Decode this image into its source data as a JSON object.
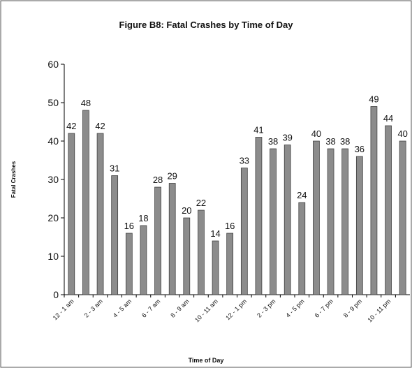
{
  "chart_data": {
    "type": "bar",
    "title": "Figure B8:  Fatal Crashes by Time of Day",
    "x_label": "Time of Day",
    "y_label": "Fatal Crashes",
    "categories": [
      "12 - 1 am",
      null,
      "2 - 3 am",
      null,
      "4 - 5 am",
      null,
      "6 - 7 am",
      null,
      "8 - 9 am",
      null,
      "10 - 11 am",
      null,
      "12 - 1 pm",
      null,
      "2 - 3 pm",
      null,
      "4 - 5 pm",
      null,
      "6 - 7 pm",
      null,
      "8 - 9 pm",
      null,
      "10 - 11 pm",
      null
    ],
    "values": [
      42,
      48,
      42,
      31,
      16,
      18,
      28,
      29,
      20,
      22,
      14,
      16,
      33,
      41,
      38,
      39,
      24,
      40,
      38,
      38,
      36,
      49,
      44,
      40
    ],
    "color": "#8c8c8c",
    "ylim": [
      0,
      60
    ],
    "yticks": [
      0,
      10,
      20,
      30,
      40,
      50,
      60
    ],
    "grid": false
  }
}
